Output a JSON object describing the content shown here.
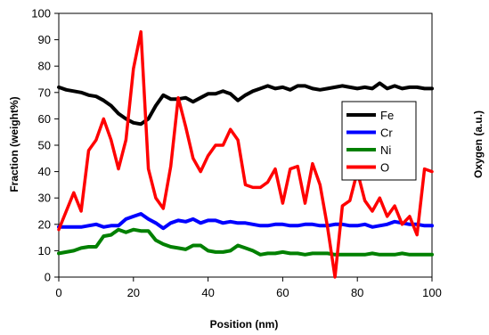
{
  "chart_data": {
    "type": "line",
    "title": "",
    "xlabel": "Position (nm)",
    "ylabel": "Fraction (weight%)",
    "y2label": "Oxygen (a.u.)",
    "xlim": [
      0,
      100
    ],
    "ylim": [
      0,
      100
    ],
    "xticks": [
      0,
      20,
      40,
      60,
      80,
      100
    ],
    "yticks": [
      0,
      10,
      20,
      30,
      40,
      50,
      60,
      70,
      80,
      90,
      100
    ],
    "grid": false,
    "legend_position": "right",
    "series": [
      {
        "name": "Fe",
        "color": "#000000",
        "x": [
          0,
          2,
          4,
          6,
          8,
          10,
          12,
          14,
          16,
          18,
          20,
          22,
          24,
          26,
          28,
          30,
          32,
          34,
          36,
          38,
          40,
          42,
          44,
          46,
          48,
          50,
          52,
          54,
          56,
          58,
          60,
          62,
          64,
          66,
          68,
          70,
          72,
          74,
          76,
          78,
          80,
          82,
          84,
          86,
          88,
          90,
          92,
          94,
          96,
          98,
          100
        ],
        "y": [
          72,
          71,
          70.5,
          70,
          69,
          68.5,
          67,
          65,
          62,
          60,
          58.5,
          58,
          60,
          65,
          69,
          67.5,
          67.5,
          68,
          66.5,
          68,
          69.5,
          69.5,
          70.5,
          69.5,
          67,
          69,
          70.5,
          71.5,
          72.5,
          71.5,
          72,
          71,
          72.5,
          72.5,
          71.5,
          71,
          71.5,
          72,
          72.5,
          72,
          71.5,
          72,
          71.5,
          73.5,
          71.5,
          72.5,
          71.5,
          72,
          72,
          71.5,
          71.5
        ]
      },
      {
        "name": "Cr",
        "color": "#0000ff",
        "x": [
          0,
          2,
          4,
          6,
          8,
          10,
          12,
          14,
          16,
          18,
          20,
          22,
          24,
          26,
          28,
          30,
          32,
          34,
          36,
          38,
          40,
          42,
          44,
          46,
          48,
          50,
          52,
          54,
          56,
          58,
          60,
          62,
          64,
          66,
          68,
          70,
          72,
          74,
          76,
          78,
          80,
          82,
          84,
          86,
          88,
          90,
          92,
          94,
          96,
          98,
          100
        ],
        "y": [
          19,
          19,
          19,
          19,
          19.5,
          20,
          19,
          19.5,
          19.5,
          22,
          23,
          24,
          22,
          20.5,
          18.5,
          20.5,
          21.5,
          21,
          22,
          20.5,
          21.5,
          21.5,
          20.5,
          21,
          20.5,
          20.5,
          20,
          19.5,
          19.5,
          20,
          20,
          19.5,
          19.5,
          20,
          20,
          19.5,
          19.5,
          20,
          20,
          19.5,
          19.5,
          20,
          19,
          19.5,
          20,
          21,
          20.5,
          20,
          20,
          19.5,
          19.5
        ]
      },
      {
        "name": "Ni",
        "color": "#008000",
        "x": [
          0,
          2,
          4,
          6,
          8,
          10,
          12,
          14,
          16,
          18,
          20,
          22,
          24,
          26,
          28,
          30,
          32,
          34,
          36,
          38,
          40,
          42,
          44,
          46,
          48,
          50,
          52,
          54,
          56,
          58,
          60,
          62,
          64,
          66,
          68,
          70,
          72,
          74,
          76,
          78,
          80,
          82,
          84,
          86,
          88,
          90,
          92,
          94,
          96,
          98,
          100
        ],
        "y": [
          9,
          9.5,
          10,
          11,
          11.5,
          11.5,
          15.5,
          16,
          18,
          17,
          18,
          17.5,
          17.5,
          14,
          12.5,
          11.5,
          11,
          10.5,
          12,
          12,
          10,
          9.5,
          9.5,
          10,
          12,
          11,
          10,
          8.5,
          9,
          9,
          9.5,
          9,
          9,
          8.5,
          9,
          9,
          9,
          8.5,
          8.5,
          8.5,
          8.5,
          8.5,
          9,
          8.5,
          8.5,
          8.5,
          9,
          8.5,
          8.5,
          8.5,
          8.5
        ]
      },
      {
        "name": "O",
        "color": "#ff0000",
        "x": [
          0,
          2,
          4,
          6,
          8,
          10,
          12,
          14,
          16,
          18,
          20,
          22,
          24,
          26,
          28,
          30,
          32,
          34,
          36,
          38,
          40,
          42,
          44,
          46,
          48,
          50,
          52,
          54,
          56,
          58,
          60,
          62,
          64,
          66,
          68,
          70,
          72,
          74,
          76,
          78,
          80,
          82,
          84,
          86,
          88,
          90,
          92,
          94,
          96,
          98,
          100
        ],
        "y": [
          18,
          25,
          32,
          25,
          48,
          52,
          60,
          52,
          41,
          52,
          79,
          93,
          41,
          30,
          26,
          42,
          68,
          57,
          45,
          40,
          46,
          50,
          50,
          56,
          52,
          35,
          34,
          34,
          36,
          41,
          28,
          41,
          42,
          28,
          43,
          35,
          19,
          0,
          27,
          29,
          40,
          29,
          25,
          30,
          23,
          27,
          20,
          23,
          16,
          41,
          40
        ]
      }
    ]
  }
}
